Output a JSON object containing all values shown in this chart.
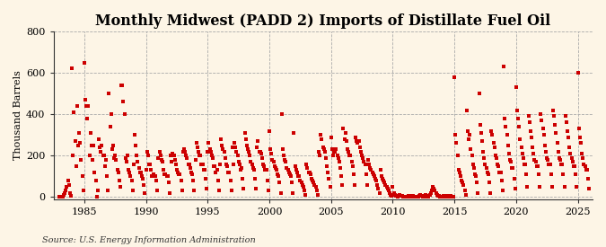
{
  "title": "Monthly Midwest (PADD 2) Imports of Distillate Fuel Oil",
  "ylabel": "Thousand Barrels",
  "source": "Source: U.S. Energy Information Administration",
  "bg_color": "#fdf5e6",
  "marker_color": "#cc0000",
  "xlim": [
    1982.5,
    2026.2
  ],
  "ylim": [
    -10,
    800
  ],
  "yticks": [
    0,
    200,
    400,
    600,
    800
  ],
  "xticks": [
    1985,
    1990,
    1995,
    2000,
    2005,
    2010,
    2015,
    2020,
    2025
  ],
  "title_fontsize": 11.5,
  "label_fontsize": 8,
  "tick_fontsize": 8,
  "source_fontsize": 7,
  "start_year": 1983,
  "start_month": 1,
  "values": [
    0,
    0,
    0,
    0,
    10,
    20,
    30,
    50,
    80,
    60,
    20,
    5,
    620,
    200,
    410,
    270,
    150,
    440,
    250,
    310,
    260,
    180,
    100,
    30,
    650,
    470,
    440,
    380,
    440,
    200,
    310,
    250,
    180,
    250,
    120,
    80,
    0,
    30,
    280,
    240,
    220,
    250,
    200,
    200,
    150,
    180,
    100,
    30,
    500,
    340,
    400,
    230,
    250,
    190,
    200,
    180,
    130,
    120,
    80,
    50,
    540,
    540,
    460,
    400,
    190,
    170,
    200,
    130,
    120,
    100,
    80,
    30,
    160,
    300,
    250,
    200,
    170,
    140,
    120,
    120,
    100,
    90,
    60,
    20,
    130,
    220,
    200,
    160,
    160,
    130,
    100,
    110,
    100,
    100,
    80,
    30,
    190,
    220,
    200,
    180,
    170,
    130,
    110,
    110,
    100,
    100,
    70,
    20,
    200,
    170,
    210,
    200,
    180,
    160,
    130,
    120,
    110,
    110,
    80,
    30,
    220,
    230,
    220,
    200,
    190,
    160,
    160,
    140,
    120,
    110,
    80,
    30,
    180,
    260,
    240,
    220,
    200,
    200,
    160,
    160,
    130,
    130,
    90,
    40,
    220,
    260,
    230,
    220,
    200,
    190,
    150,
    150,
    120,
    130,
    80,
    30,
    160,
    280,
    250,
    230,
    220,
    190,
    160,
    150,
    120,
    120,
    80,
    30,
    240,
    160,
    260,
    240,
    220,
    200,
    170,
    160,
    130,
    140,
    90,
    40,
    310,
    280,
    250,
    230,
    220,
    200,
    170,
    160,
    140,
    130,
    90,
    40,
    240,
    270,
    220,
    220,
    210,
    190,
    160,
    150,
    130,
    130,
    80,
    30,
    320,
    230,
    210,
    180,
    170,
    150,
    140,
    130,
    110,
    100,
    70,
    20,
    400,
    230,
    200,
    180,
    170,
    140,
    130,
    120,
    110,
    100,
    70,
    20,
    310,
    150,
    130,
    120,
    100,
    100,
    80,
    70,
    60,
    50,
    30,
    10,
    160,
    140,
    120,
    120,
    110,
    90,
    80,
    70,
    60,
    50,
    30,
    10,
    220,
    200,
    300,
    280,
    240,
    230,
    220,
    190,
    150,
    120,
    90,
    50,
    290,
    230,
    200,
    220,
    220,
    230,
    200,
    190,
    170,
    140,
    100,
    60,
    330,
    280,
    310,
    270,
    230,
    220,
    200,
    200,
    170,
    150,
    110,
    60,
    290,
    270,
    260,
    270,
    240,
    220,
    200,
    190,
    170,
    160,
    110,
    60,
    180,
    160,
    140,
    130,
    120,
    110,
    100,
    90,
    80,
    60,
    40,
    20,
    130,
    100,
    90,
    80,
    70,
    60,
    50,
    40,
    30,
    20,
    10,
    5,
    50,
    20,
    10,
    5,
    5,
    0,
    5,
    10,
    5,
    5,
    0,
    0,
    0,
    0,
    0,
    5,
    5,
    0,
    0,
    0,
    5,
    0,
    0,
    0,
    0,
    0,
    5,
    10,
    5,
    0,
    0,
    5,
    10,
    5,
    0,
    0,
    10,
    20,
    30,
    50,
    40,
    30,
    20,
    10,
    5,
    5,
    0,
    0,
    0,
    5,
    0,
    0,
    0,
    5,
    0,
    5,
    5,
    0,
    0,
    0,
    580,
    300,
    260,
    200,
    130,
    120,
    100,
    80,
    70,
    60,
    30,
    10,
    420,
    320,
    280,
    300,
    230,
    200,
    160,
    140,
    110,
    100,
    70,
    20,
    500,
    350,
    310,
    270,
    220,
    190,
    160,
    140,
    120,
    110,
    70,
    20,
    320,
    300,
    260,
    240,
    200,
    190,
    160,
    150,
    120,
    120,
    80,
    30,
    630,
    380,
    340,
    300,
    250,
    210,
    180,
    170,
    140,
    140,
    90,
    40,
    530,
    420,
    380,
    340,
    280,
    240,
    210,
    190,
    160,
    160,
    110,
    50,
    390,
    360,
    320,
    290,
    240,
    210,
    180,
    170,
    150,
    150,
    110,
    50,
    400,
    370,
    330,
    300,
    250,
    220,
    190,
    180,
    160,
    160,
    110,
    50,
    420,
    390,
    350,
    310,
    260,
    220,
    190,
    180,
    160,
    160,
    110,
    50,
    390,
    360,
    320,
    290,
    240,
    210,
    190,
    170,
    150,
    150,
    110,
    50,
    600,
    330,
    290,
    260,
    210,
    190,
    160,
    150,
    130,
    130,
    90,
    40
  ]
}
